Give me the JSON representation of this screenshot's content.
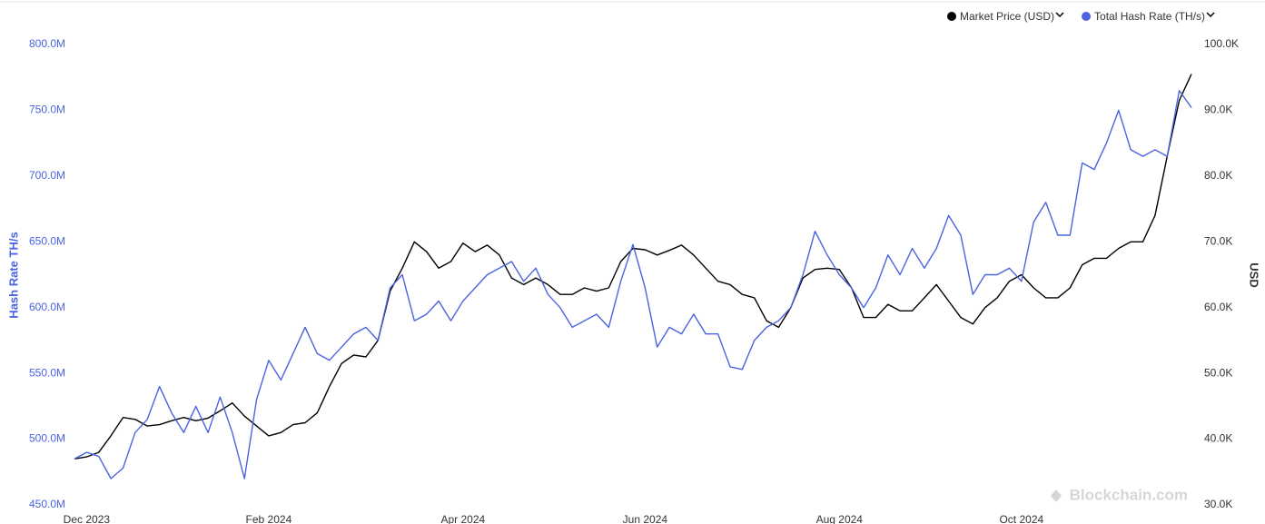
{
  "chart_data": {
    "type": "line",
    "legend_position": "top-right",
    "watermark": "Blockchain.com",
    "ylabel": "Hash Rate TH/s",
    "y2label": "USD",
    "categories": [
      null,
      "Dec 2023",
      null,
      null,
      null,
      null,
      null,
      null,
      null,
      null,
      null,
      null,
      null,
      null,
      null,
      null,
      "Feb 2024",
      null,
      null,
      null,
      null,
      null,
      null,
      null,
      null,
      null,
      null,
      null,
      null,
      null,
      null,
      null,
      "Apr 2024",
      null,
      null,
      null,
      null,
      null,
      null,
      null,
      null,
      null,
      null,
      null,
      null,
      null,
      null,
      "Jun 2024",
      null,
      null,
      null,
      null,
      null,
      null,
      null,
      null,
      null,
      null,
      null,
      null,
      null,
      null,
      null,
      "Aug 2024",
      null,
      null,
      null,
      null,
      null,
      null,
      null,
      null,
      null,
      null,
      null,
      null,
      null,
      null,
      "Oct 2024",
      null,
      null,
      null,
      null,
      null,
      null,
      null,
      null,
      null,
      null,
      null,
      null,
      null,
      null
    ],
    "series": [
      {
        "name": "Market Price (USD)",
        "color": "#000000",
        "axis": "y2",
        "values": [
          37000,
          37300,
          38000,
          40500,
          43300,
          43000,
          42000,
          42200,
          42800,
          43300,
          42800,
          43200,
          44300,
          45500,
          43500,
          42000,
          40500,
          41000,
          42200,
          42500,
          44000,
          48000,
          51500,
          52800,
          52500,
          55000,
          62500,
          66000,
          70000,
          68500,
          66000,
          67000,
          69800,
          68500,
          69500,
          68000,
          64500,
          63500,
          64500,
          63500,
          62000,
          62000,
          63000,
          62500,
          63000,
          67000,
          69000,
          68800,
          68000,
          68700,
          69500,
          68000,
          66000,
          64000,
          63500,
          62000,
          61500,
          58000,
          57000,
          60000,
          64500,
          65800,
          66000,
          65800,
          63000,
          58500,
          58500,
          60500,
          59500,
          59500,
          61500,
          63500,
          61000,
          58500,
          57500,
          60000,
          61500,
          64000,
          65000,
          63000,
          61500,
          61500,
          63000,
          66500,
          67500,
          67500,
          69000,
          70000,
          70000,
          74000,
          83000,
          91500,
          95500
        ]
      },
      {
        "name": "Total Hash Rate (TH/s)",
        "color": "#4b63e0",
        "values": [
          485000000,
          490000000,
          487000000,
          470000000,
          478000000,
          505000000,
          515000000,
          540000000,
          520000000,
          505000000,
          525000000,
          505000000,
          532000000,
          505000000,
          470000000,
          530000000,
          560000000,
          545000000,
          565000000,
          585000000,
          565000000,
          560000000,
          570000000,
          580000000,
          585000000,
          575000000,
          615000000,
          625000000,
          590000000,
          595000000,
          605000000,
          590000000,
          605000000,
          615000000,
          625000000,
          630000000,
          635000000,
          620000000,
          630000000,
          610000000,
          600000000,
          585000000,
          590000000,
          595000000,
          585000000,
          620000000,
          648000000,
          615000000,
          570000000,
          585000000,
          580000000,
          595000000,
          580000000,
          580000000,
          555000000,
          553000000,
          575000000,
          585000000,
          590000000,
          600000000,
          625000000,
          658000000,
          640000000,
          625000000,
          615000000,
          600000000,
          615000000,
          640000000,
          625000000,
          645000000,
          630000000,
          645000000,
          670000000,
          655000000,
          610000000,
          625000000,
          625000000,
          630000000,
          620000000,
          665000000,
          680000000,
          655000000,
          655000000,
          710000000,
          705000000,
          725000000,
          750000000,
          720000000,
          715000000,
          720000000,
          715000000,
          765000000,
          752000000
        ]
      }
    ],
    "ylim": [
      450000000,
      800000000
    ],
    "yticks": [
      {
        "value": 450000000,
        "label": "450.0M"
      },
      {
        "value": 500000000,
        "label": "500.0M"
      },
      {
        "value": 550000000,
        "label": "550.0M"
      },
      {
        "value": 600000000,
        "label": "600.0M"
      },
      {
        "value": 650000000,
        "label": "650.0M"
      },
      {
        "value": 700000000,
        "label": "700.0M"
      },
      {
        "value": 750000000,
        "label": "750.0M"
      },
      {
        "value": 800000000,
        "label": "800.0M"
      }
    ],
    "y2lim": [
      30000,
      100000
    ],
    "y2ticks": [
      {
        "value": 30000,
        "label": "30.0K"
      },
      {
        "value": 40000,
        "label": "40.0K"
      },
      {
        "value": 50000,
        "label": "50.0K"
      },
      {
        "value": 60000,
        "label": "60.0K"
      },
      {
        "value": 70000,
        "label": "70.0K"
      },
      {
        "value": 80000,
        "label": "80.0K"
      },
      {
        "value": 90000,
        "label": "90.0K"
      },
      {
        "value": 100000,
        "label": "100.0K"
      }
    ],
    "grid": false
  }
}
